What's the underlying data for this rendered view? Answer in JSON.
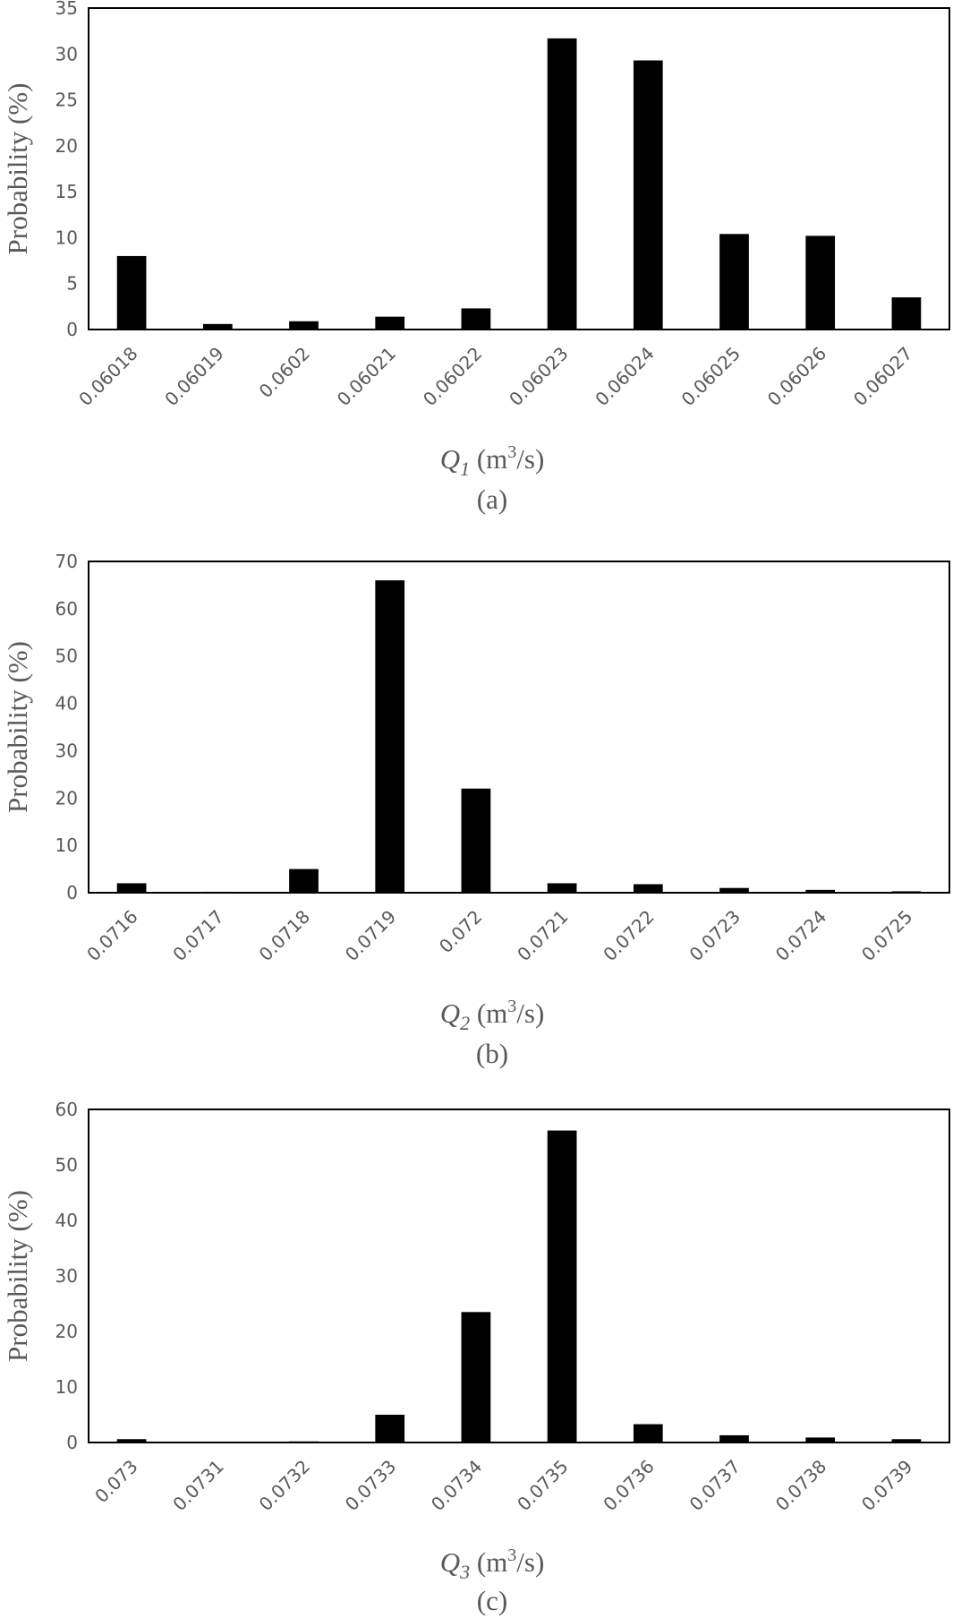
{
  "chart_data": [
    {
      "type": "bar",
      "ylabel": "Probability (%)",
      "xlabel_var": "Q",
      "xlabel_sub": "1",
      "xlabel_unit_pre": " (m",
      "xlabel_unit_sup": "3",
      "xlabel_unit_post": "/s)",
      "panel_label": "(a)",
      "ylim": [
        0,
        35
      ],
      "yticks": [
        0,
        5,
        10,
        15,
        20,
        25,
        30,
        35
      ],
      "categories": [
        "0.06018",
        "0.06019",
        "0.0602",
        "0.06021",
        "0.06022",
        "0.06023",
        "0.06024",
        "0.06025",
        "0.06026",
        "0.06027"
      ],
      "values": [
        8.0,
        0.6,
        0.9,
        1.4,
        2.3,
        31.7,
        29.3,
        10.4,
        10.2,
        3.5
      ],
      "grid": false,
      "bar_color": "#000000"
    },
    {
      "type": "bar",
      "ylabel": "Probability (%)",
      "xlabel_var": "Q",
      "xlabel_sub": "2",
      "xlabel_unit_pre": " (m",
      "xlabel_unit_sup": "3",
      "xlabel_unit_post": "/s)",
      "panel_label": "(b)",
      "ylim": [
        0,
        70
      ],
      "yticks": [
        0,
        10,
        20,
        30,
        40,
        50,
        60,
        70
      ],
      "categories": [
        "0.0716",
        "0.0717",
        "0.0718",
        "0.0719",
        "0.072",
        "0.0721",
        "0.0722",
        "0.0723",
        "0.0724",
        "0.0725"
      ],
      "values": [
        2.0,
        0.2,
        5.0,
        66.0,
        22.0,
        2.0,
        1.8,
        1.0,
        0.6,
        0.3
      ],
      "grid": false,
      "bar_color": "#000000"
    },
    {
      "type": "bar",
      "ylabel": "Probability (%)",
      "xlabel_var": "Q",
      "xlabel_sub": "3",
      "xlabel_unit_pre": " (m",
      "xlabel_unit_sup": "3",
      "xlabel_unit_post": "/s)",
      "panel_label": "(c)",
      "ylim": [
        0,
        60
      ],
      "yticks": [
        0,
        10,
        20,
        30,
        40,
        50,
        60
      ],
      "categories": [
        "0.073",
        "0.0731",
        "0.0732",
        "0.0733",
        "0.0734",
        "0.0735",
        "0.0736",
        "0.0737",
        "0.0738",
        "0.0739"
      ],
      "values": [
        0.6,
        0.1,
        0.2,
        5.0,
        23.5,
        56.2,
        3.3,
        1.3,
        0.9,
        0.6
      ],
      "grid": false,
      "bar_color": "#000000"
    }
  ]
}
